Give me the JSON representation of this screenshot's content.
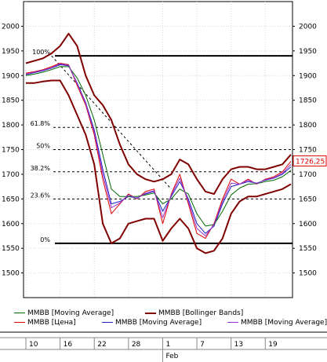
{
  "chart_data": {
    "type": "line",
    "title": "",
    "yaxis": {
      "min": 1450,
      "max": 2050,
      "ticks": [
        1500,
        1550,
        1600,
        1650,
        1700,
        1750,
        1800,
        1850,
        1900,
        1950,
        2000
      ],
      "tick_labels": [
        "1500",
        "1550",
        "1600",
        "1650",
        "1700",
        "1750",
        "1800",
        "1850",
        "1900",
        "1950",
        "2000"
      ]
    },
    "current_price": {
      "value": 1726.25,
      "label": "1726,25"
    },
    "fibonacci": [
      {
        "label": "100%",
        "value": 1940
      },
      {
        "label": "61.8%",
        "value": 1795
      },
      {
        "label": "50%",
        "value": 1750
      },
      {
        "label": "38.2%",
        "value": 1705
      },
      {
        "label": "23.6%",
        "value": 1650
      },
      {
        "label": "0%",
        "value": 1560
      }
    ],
    "xaxis": {
      "ticks": [
        {
          "label": "10",
          "index": 0
        },
        {
          "label": "16",
          "index": 4
        },
        {
          "label": "22",
          "index": 8
        },
        {
          "label": "28",
          "index": 12
        },
        {
          "label": "1",
          "index": 16
        },
        {
          "label": "7",
          "index": 20
        },
        {
          "label": "13",
          "index": 24
        },
        {
          "label": "19",
          "index": 28
        }
      ],
      "month_label": "Feb",
      "month_index": 16,
      "count": 32
    },
    "series": [
      {
        "name": "MMBB [Цена]",
        "color": "#e00000",
        "values": [
          1905,
          1908,
          1912,
          1918,
          1925,
          1922,
          1880,
          1840,
          1780,
          1690,
          1620,
          1640,
          1660,
          1650,
          1665,
          1670,
          1600,
          1660,
          1700,
          1640,
          1580,
          1570,
          1600,
          1650,
          1690,
          1680,
          1690,
          1680,
          1690,
          1695,
          1705,
          1726.25
        ]
      },
      {
        "name": "MMBB [Moving Average]",
        "color": "#2020c0",
        "values": [
          1902,
          1906,
          1910,
          1915,
          1922,
          1920,
          1885,
          1845,
          1790,
          1710,
          1640,
          1645,
          1655,
          1652,
          1660,
          1665,
          1625,
          1655,
          1685,
          1650,
          1600,
          1580,
          1595,
          1640,
          1675,
          1680,
          1685,
          1682,
          1688,
          1692,
          1700,
          1715
        ]
      },
      {
        "name": "MMBB [Moving Average]",
        "color": "#006600",
        "values": [
          1900,
          1903,
          1907,
          1912,
          1918,
          1918,
          1895,
          1860,
          1810,
          1740,
          1670,
          1655,
          1655,
          1655,
          1658,
          1662,
          1640,
          1650,
          1670,
          1660,
          1620,
          1595,
          1598,
          1625,
          1658,
          1672,
          1680,
          1681,
          1685,
          1688,
          1695,
          1708
        ]
      },
      {
        "name": "MMBB [Moving Average]",
        "color": "#9933cc",
        "values": [
          1903,
          1907,
          1911,
          1916,
          1924,
          1921,
          1883,
          1843,
          1785,
          1700,
          1632,
          1642,
          1658,
          1651,
          1662,
          1667,
          1612,
          1658,
          1692,
          1645,
          1590,
          1575,
          1598,
          1645,
          1682,
          1680,
          1688,
          1681,
          1689,
          1693,
          1702,
          1720
        ]
      },
      {
        "name": "MMBB [Bollinger Bands]",
        "color": "#800000",
        "upper": [
          1925,
          1930,
          1935,
          1945,
          1960,
          1985,
          1960,
          1900,
          1860,
          1840,
          1810,
          1760,
          1720,
          1700,
          1690,
          1685,
          1690,
          1700,
          1730,
          1720,
          1690,
          1665,
          1660,
          1690,
          1710,
          1715,
          1715,
          1710,
          1710,
          1715,
          1720,
          1740
        ],
        "lower": [
          1885,
          1885,
          1888,
          1890,
          1890,
          1860,
          1820,
          1780,
          1720,
          1600,
          1560,
          1570,
          1600,
          1605,
          1610,
          1610,
          1565,
          1590,
          1610,
          1590,
          1550,
          1540,
          1545,
          1570,
          1620,
          1645,
          1655,
          1655,
          1660,
          1665,
          1670,
          1680
        ]
      }
    ],
    "legend": [
      {
        "label": "MMBB [Moving Average]",
        "color": "#006600"
      },
      {
        "label": "MMBB [Bollinger Bands]",
        "color": "#800000"
      },
      {
        "label": "MMBB [Цена]",
        "color": "#e00000"
      },
      {
        "label": "MMBB [Moving Average]",
        "color": "#2020c0"
      },
      {
        "label": "MMBB [Moving Average]",
        "color": "#9933cc"
      }
    ]
  }
}
